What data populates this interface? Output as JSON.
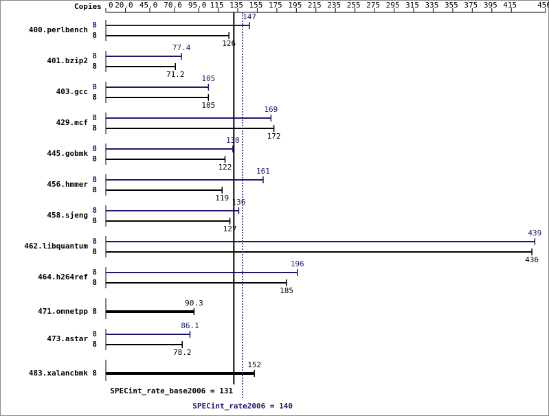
{
  "chart_data": {
    "type": "bar",
    "orientation": "horizontal",
    "xlabel": "Copies",
    "categories": [
      "400.perlbench",
      "401.bzip2",
      "403.gcc",
      "429.mcf",
      "445.gobmk",
      "456.hmmer",
      "458.sjeng",
      "462.libquantum",
      "464.h264ref",
      "471.omnetpp",
      "473.astar",
      "483.xalancbmk"
    ],
    "series": [
      {
        "color": "#191970",
        "values": [
          147,
          77.4,
          105,
          169,
          130,
          161,
          136,
          439,
          196,
          null,
          86.1,
          null
        ],
        "copies": [
          8,
          8,
          8,
          8,
          8,
          8,
          8,
          8,
          8,
          null,
          8,
          null
        ]
      },
      {
        "color": "#000000",
        "values": [
          126,
          71.2,
          105,
          172,
          122,
          119,
          127,
          436,
          185,
          90.3,
          78.2,
          152
        ],
        "copies": [
          8,
          8,
          8,
          8,
          8,
          8,
          8,
          8,
          8,
          8,
          8,
          8
        ]
      }
    ],
    "xlim": [
      0,
      450
    ],
    "xticks": [
      0,
      {
        "value": 20,
        "label": "20.0"
      },
      {
        "value": 45,
        "label": "45.0"
      },
      {
        "value": 70,
        "label": "70.0"
      },
      {
        "value": 95,
        "label": "95.0"
      },
      115,
      135,
      155,
      175,
      195,
      215,
      235,
      255,
      275,
      295,
      315,
      335,
      355,
      375,
      395,
      415,
      450
    ],
    "reference_lines": [
      {
        "value": 131,
        "label": "SPECint_rate_base2006 = 131",
        "color": "#000000",
        "dashed": false
      },
      {
        "value": 140,
        "label": "SPECint_rate2006 = 140",
        "color": "#191970",
        "dashed": true
      }
    ]
  }
}
